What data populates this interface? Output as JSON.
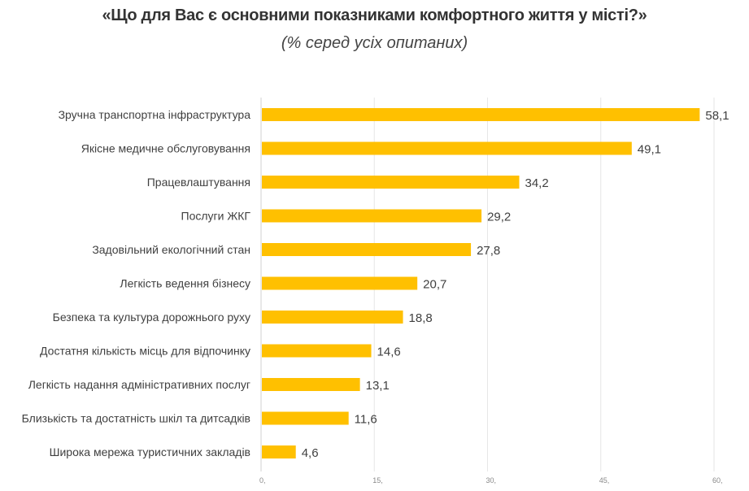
{
  "chart_data": {
    "type": "bar",
    "orientation": "horizontal",
    "title": "«Що для Вас є основними показниками комфортного життя у місті?»",
    "subtitle": "(% серед усіх опитаних)",
    "categories": [
      "Зручна транспортна інфраструктура",
      "Якісне медичне обслуговування",
      "Працевлаштування",
      "Послуги ЖКГ",
      "Задовільний екологічний стан",
      "Легкість ведення бізнесу",
      "Безпека та культура дорожнього руху",
      "Достатня кількість місць для відпочинку",
      "Легкість надання адміністративних послуг",
      "Близькість та достатність шкіл та дитсадків",
      "Широка мережа туристичних закладів"
    ],
    "values": [
      58.1,
      49.1,
      34.2,
      29.2,
      27.8,
      20.7,
      18.8,
      14.6,
      13.1,
      11.6,
      4.6
    ],
    "data_labels": [
      "58,1",
      "49,1",
      "34,2",
      "29,2",
      "27,8",
      "20,7",
      "18,8",
      "14,6",
      "13,1",
      "11,6",
      "4,6"
    ],
    "xlim": [
      0,
      60
    ],
    "ticks": [
      0,
      15,
      30,
      45,
      60
    ],
    "tick_labels": [
      "0,",
      "15,",
      "30,",
      "45,",
      "60,"
    ],
    "grid": true,
    "bar_color": "#FFC000"
  }
}
